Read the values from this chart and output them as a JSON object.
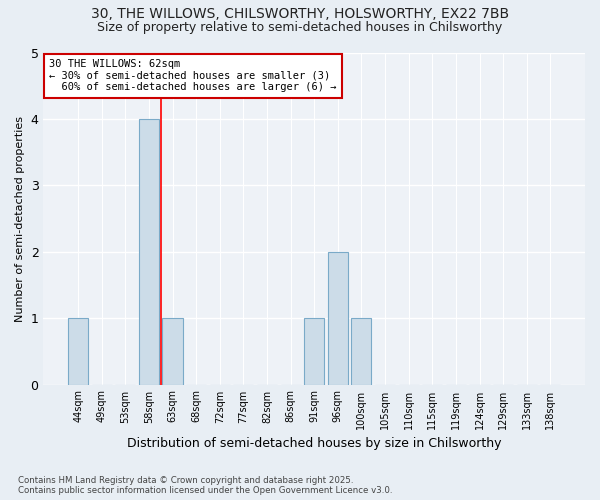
{
  "title": "30, THE WILLOWS, CHILSWORTHY, HOLSWORTHY, EX22 7BB",
  "subtitle": "Size of property relative to semi-detached houses in Chilsworthy",
  "xlabel": "Distribution of semi-detached houses by size in Chilsworthy",
  "ylabel": "Number of semi-detached properties",
  "categories": [
    "44sqm",
    "49sqm",
    "53sqm",
    "58sqm",
    "63sqm",
    "68sqm",
    "72sqm",
    "77sqm",
    "82sqm",
    "86sqm",
    "91sqm",
    "96sqm",
    "100sqm",
    "105sqm",
    "110sqm",
    "115sqm",
    "119sqm",
    "124sqm",
    "129sqm",
    "133sqm",
    "138sqm"
  ],
  "values": [
    1,
    0,
    0,
    4,
    1,
    0,
    0,
    0,
    0,
    0,
    1,
    2,
    1,
    0,
    0,
    0,
    0,
    0,
    0,
    0,
    0
  ],
  "bar_color": "#ccdce8",
  "bar_edge_color": "#7aaac8",
  "red_line_x": 3.5,
  "smaller_pct": "30%",
  "smaller_count": 3,
  "larger_pct": "60%",
  "larger_count": 6,
  "annotation_box_color": "#ffffff",
  "annotation_border_color": "#cc0000",
  "ylim": [
    0,
    5
  ],
  "yticks": [
    0,
    1,
    2,
    3,
    4,
    5
  ],
  "footer": "Contains HM Land Registry data © Crown copyright and database right 2025.\nContains public sector information licensed under the Open Government Licence v3.0.",
  "bg_color": "#e8eef4",
  "plot_bg_color": "#eef2f7",
  "title_fontsize": 10,
  "subtitle_fontsize": 9,
  "xlabel_fontsize": 9,
  "ylabel_fontsize": 8,
  "grid_color": "#ffffff"
}
